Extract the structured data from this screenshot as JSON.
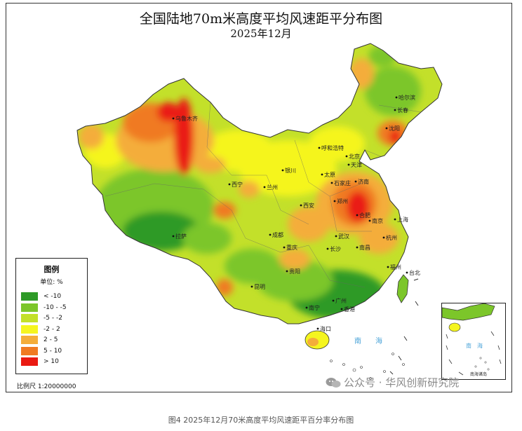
{
  "title": "全国陆地70m米高度平均风速距平分布图",
  "subtitle": "2025年12月",
  "legend": {
    "title": "图例",
    "unit": "单位: %",
    "items": [
      {
        "label": "< -10",
        "color": "#2e9a27"
      },
      {
        "label": "-10 - -5",
        "color": "#7cc62a"
      },
      {
        "label": "-5 - -2",
        "color": "#c3e02a"
      },
      {
        "label": "-2 - 2",
        "color": "#f5f51f"
      },
      {
        "label": "2 - 5",
        "color": "#f4ad3a"
      },
      {
        "label": "5 - 10",
        "color": "#f07a22"
      },
      {
        "label": "> 10",
        "color": "#ea1a12"
      }
    ]
  },
  "scale": "比例尺 1:20000000",
  "cities": [
    "哈尔滨",
    "长春",
    "沈阳",
    "乌鲁木齐",
    "呼和浩特",
    "北京",
    "天津",
    "银川",
    "太原",
    "石家庄",
    "济南",
    "西宁",
    "兰州",
    "郑州",
    "西安",
    "合肥",
    "南京",
    "上海",
    "拉萨",
    "成都",
    "武汉",
    "杭州",
    "重庆",
    "长沙",
    "南昌",
    "福州",
    "台北",
    "贵阳",
    "昆明",
    "广州",
    "南宁",
    "香港",
    "海口"
  ],
  "seas": [
    "南",
    "海"
  ],
  "inset": {
    "label": "南海诸岛",
    "seas": [
      "南",
      "海"
    ]
  },
  "watermark": "公众号 · 华风创新研究院",
  "caption": "图4  2025年12月70米高度平均风速距平百分率分布图"
}
